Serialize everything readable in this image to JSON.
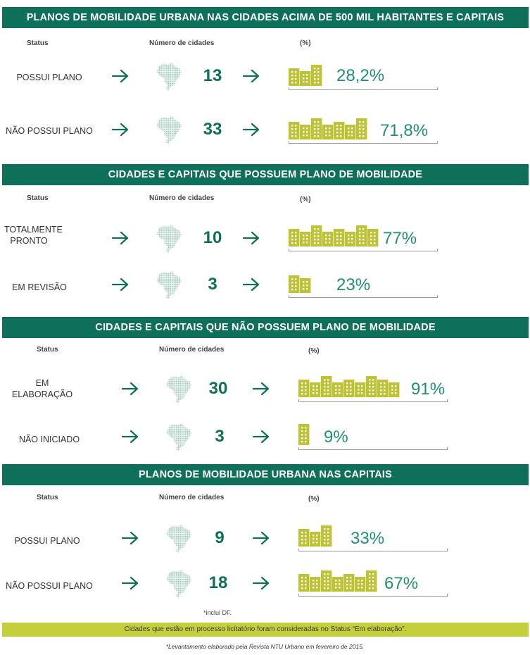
{
  "colors": {
    "band": "#0f705a",
    "number": "#0f705a",
    "percent": "#1f8f75",
    "building": "#bec235",
    "map": "#cfe2dc",
    "footer": "#c4cf3c"
  },
  "icons": {
    "arrow": "arrow-right-icon",
    "map": "brazil-map-icon",
    "building": "building-icon"
  },
  "chart_data": [
    {
      "type": "table",
      "title": "PLANOS DE MOBILIDADE URBANA NAS CIDADES ACIMA DE 500 MIL HABITANTES E CAPITAIS",
      "columns": [
        "Status",
        "Número de cidades",
        "(%)"
      ],
      "rows": [
        {
          "status": "POSSUI PLANO",
          "count": "13",
          "percent": "28,2%",
          "value": 28.2
        },
        {
          "status": "NÃO POSSUI PLANO",
          "count": "33",
          "percent": "71,8%",
          "value": 71.8
        }
      ]
    },
    {
      "type": "table",
      "title": "CIDADES E CAPITAIS QUE POSSUEM PLANO DE MOBILIDADE",
      "columns": [
        "Status",
        "Número de cidades",
        "(%)"
      ],
      "rows": [
        {
          "status": "TOTALMENTE PRONTO",
          "count": "10",
          "percent": "77%",
          "value": 77
        },
        {
          "status": "EM REVISÃO",
          "count": "3",
          "percent": "23%",
          "value": 23
        }
      ]
    },
    {
      "type": "table",
      "title": "CIDADES E CAPITAIS QUE NÃO POSSUEM PLANO DE MOBILIDADE",
      "columns": [
        "Status",
        "Número de cidades",
        "(%)"
      ],
      "rows": [
        {
          "status": "EM ELABORAÇÃO",
          "count": "30",
          "percent": "91%",
          "value": 91
        },
        {
          "status": "NÃO INICIADO",
          "count": "3",
          "percent": "9%",
          "value": 9
        }
      ]
    },
    {
      "type": "table",
      "title": "PLANOS DE MOBILIDADE URBANA NAS CAPITAIS",
      "columns": [
        "Status",
        "Número de cidades",
        "(%)"
      ],
      "rows": [
        {
          "status": "POSSUI PLANO",
          "count": "9",
          "percent": "33%",
          "value": 33
        },
        {
          "status": "NÃO POSSUI PLANO",
          "count": "18",
          "percent": "67%",
          "value": 67
        }
      ]
    }
  ],
  "notes": {
    "df": "*inclui DF.",
    "footer": "Cidades que estão em processo licitatório foram consideradas no Status “Em elaboração”.",
    "credit": "*Levantamento elaborado pela Revista NTU Urbano em fevereiro de 2015."
  }
}
